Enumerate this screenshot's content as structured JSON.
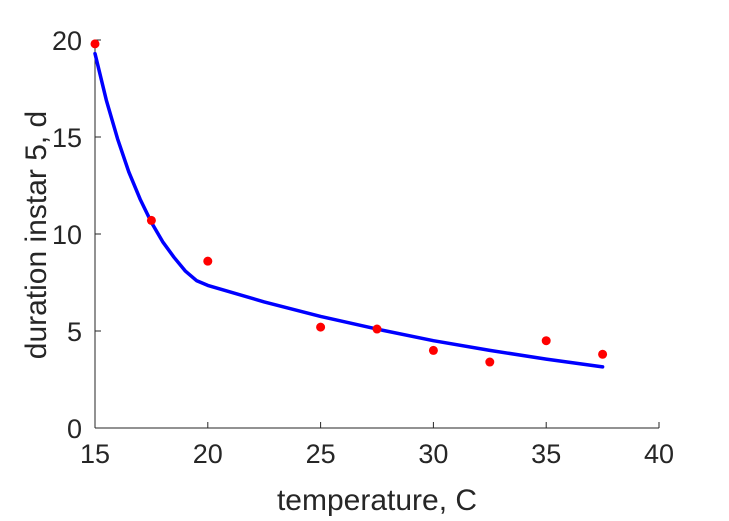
{
  "chart_data": {
    "type": "scatter",
    "title": "",
    "xlabel": "temperature, C",
    "ylabel": "duration instar 5, d",
    "xlim": [
      15,
      40
    ],
    "ylim": [
      0,
      20
    ],
    "xticks": [
      15,
      20,
      25,
      30,
      35,
      40
    ],
    "yticks": [
      0,
      5,
      10,
      15,
      20
    ],
    "grid": false,
    "legend": "none",
    "series": [
      {
        "kind": "points",
        "color": "#ff0000",
        "x": [
          15,
          17.5,
          20,
          25,
          27.5,
          30,
          32.5,
          35,
          37.5
        ],
        "y": [
          19.8,
          10.7,
          8.6,
          5.2,
          5.1,
          4.0,
          3.4,
          4.5,
          3.8
        ]
      },
      {
        "kind": "line",
        "color": "#0000ff",
        "x": [
          15,
          15.5,
          16,
          16.5,
          17,
          17.5,
          18,
          18.5,
          19,
          19.5,
          20,
          22.5,
          25,
          27.5,
          30,
          32.5,
          35,
          37.5
        ],
        "y": [
          19.3,
          16.9,
          14.9,
          13.2,
          11.8,
          10.6,
          9.6,
          8.8,
          8.1,
          7.6,
          7.35,
          6.5,
          5.75,
          5.1,
          4.5,
          4.0,
          3.55,
          3.15
        ]
      }
    ]
  }
}
